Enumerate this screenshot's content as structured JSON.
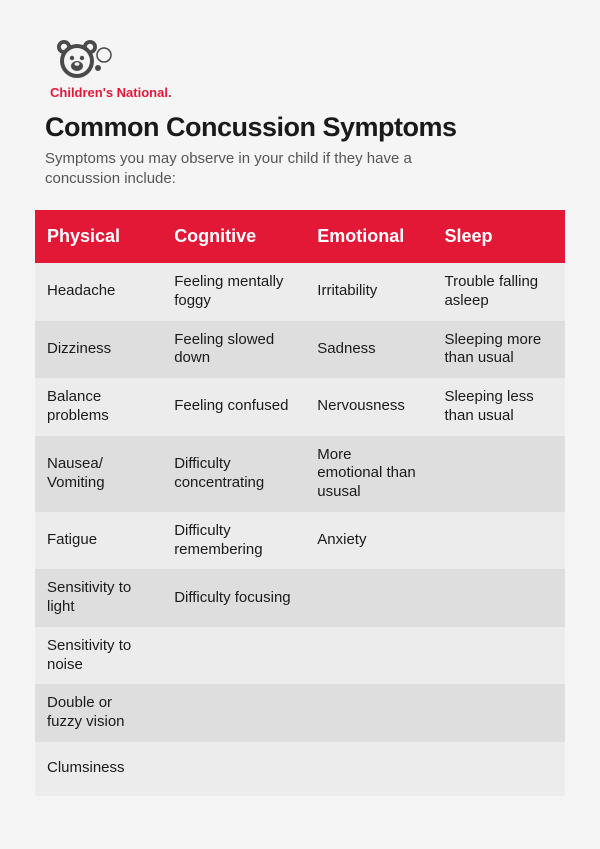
{
  "brand": {
    "name": "Children's National.",
    "color": "#e31837",
    "logo_bg": "#4a4a4a"
  },
  "title": "Common Concussion Symptoms",
  "subtitle": "Symptoms you may observe in your child if they have a concussion include:",
  "table": {
    "header_bg": "#e31837",
    "header_text_color": "#ffffff",
    "row_odd_bg": "#ececec",
    "row_even_bg": "#dedede",
    "columns": [
      "Physical",
      "Cognitive",
      "Emotional",
      "Sleep"
    ],
    "rows": [
      [
        "Headache",
        "Feeling mentally foggy",
        "Irritability",
        "Trouble falling asleep"
      ],
      [
        "Dizziness",
        "Feeling slowed down",
        "Sadness",
        "Sleeping more than usual"
      ],
      [
        "Balance problems",
        "Feeling confused",
        "Nervousness",
        "Sleeping less than usual"
      ],
      [
        "Nausea/ Vomiting",
        "Difficulty concentrating",
        "More emotional than ususal",
        ""
      ],
      [
        "Fatigue",
        "Difficulty remembering",
        "Anxiety",
        ""
      ],
      [
        "Sensitivity to light",
        "Difficulty focusing",
        "",
        ""
      ],
      [
        "Sensitivity to noise",
        "",
        "",
        ""
      ],
      [
        "Double or fuzzy vision",
        "",
        "",
        ""
      ],
      [
        "Clumsiness",
        "",
        "",
        ""
      ]
    ]
  }
}
